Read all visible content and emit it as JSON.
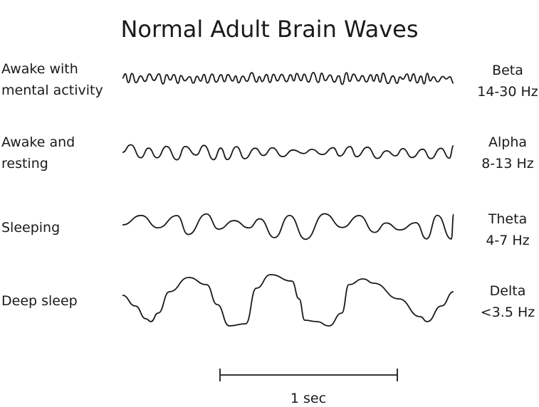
{
  "title": "Normal Adult Brain Waves",
  "rows": [
    {
      "state": [
        "Awake with",
        "mental activity"
      ],
      "wave": "Beta",
      "freq": "14-30 Hz"
    },
    {
      "state": [
        "Awake and",
        "resting"
      ],
      "wave": "Alpha",
      "freq": "8-13 Hz"
    },
    {
      "state": [
        "Sleeping"
      ],
      "wave": "Theta",
      "freq": "4-7 Hz"
    },
    {
      "state": [
        "Deep sleep"
      ],
      "wave": "Delta",
      "freq": "<3.5 Hz"
    }
  ],
  "scale_bar": {
    "label": "1 sec"
  },
  "line_color": "#1a1a1a"
}
